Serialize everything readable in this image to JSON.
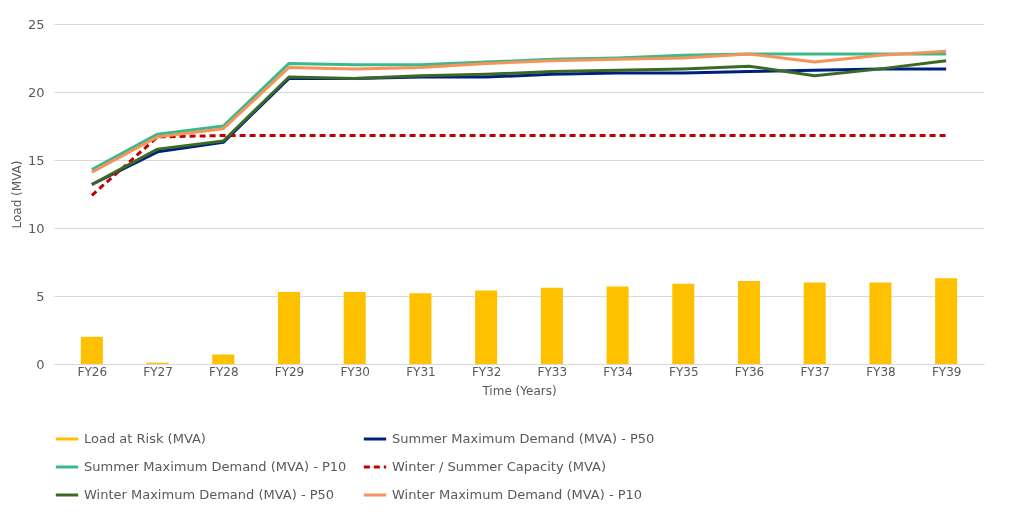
{
  "chart_data": {
    "type": "line",
    "xlabel": "Time (Years)",
    "ylabel": "Load (MVA)",
    "categories": [
      "FY26",
      "FY27",
      "FY28",
      "FY29",
      "FY30",
      "FY31",
      "FY32",
      "FY33",
      "FY34",
      "FY35",
      "FY36",
      "FY37",
      "FY38",
      "FY39"
    ],
    "ylim": [
      0,
      25
    ],
    "yticks": [
      0,
      5,
      10,
      15,
      20,
      25
    ],
    "grid": "y",
    "legend": "bottom",
    "series": [
      {
        "name": "Load at Risk (MVA)",
        "type": "bar",
        "color": "#ffc000",
        "values": [
          2.0,
          0.1,
          0.7,
          5.3,
          5.3,
          5.2,
          5.4,
          5.6,
          5.7,
          5.9,
          6.1,
          6.0,
          6.0,
          6.3
        ]
      },
      {
        "name": "Summer Maximum Demand (MVA) - P50",
        "color": "#002080",
        "values": [
          13.2,
          15.6,
          16.3,
          21.0,
          21.0,
          21.1,
          21.1,
          21.3,
          21.4,
          21.4,
          21.5,
          21.6,
          21.7,
          21.7
        ]
      },
      {
        "name": "Summer Maximum Demand (MVA) - P10",
        "color": "#3cb88c",
        "values": [
          14.3,
          16.9,
          17.5,
          22.1,
          22.0,
          22.0,
          22.2,
          22.4,
          22.5,
          22.7,
          22.8,
          22.8,
          22.8,
          22.8
        ]
      },
      {
        "name": "Winter / Summer Capacity (MVA)",
        "line_style": "dashed",
        "color": "#c00000",
        "values": [
          12.4,
          16.7,
          16.8,
          16.8,
          16.8,
          16.8,
          16.8,
          16.8,
          16.8,
          16.8,
          16.8,
          16.8,
          16.8,
          16.8
        ]
      },
      {
        "name": "Winter Maximum Demand (MVA) - P50",
        "color": "#3a6a24",
        "values": [
          13.2,
          15.8,
          16.4,
          21.1,
          21.0,
          21.2,
          21.3,
          21.5,
          21.6,
          21.7,
          21.9,
          21.2,
          21.7,
          22.3
        ]
      },
      {
        "name": "Winter Maximum Demand (MVA) - P10",
        "color": "#f4935a",
        "values": [
          14.1,
          16.7,
          17.3,
          21.8,
          21.7,
          21.8,
          22.1,
          22.3,
          22.4,
          22.5,
          22.8,
          22.2,
          22.7,
          23.0
        ]
      }
    ]
  }
}
